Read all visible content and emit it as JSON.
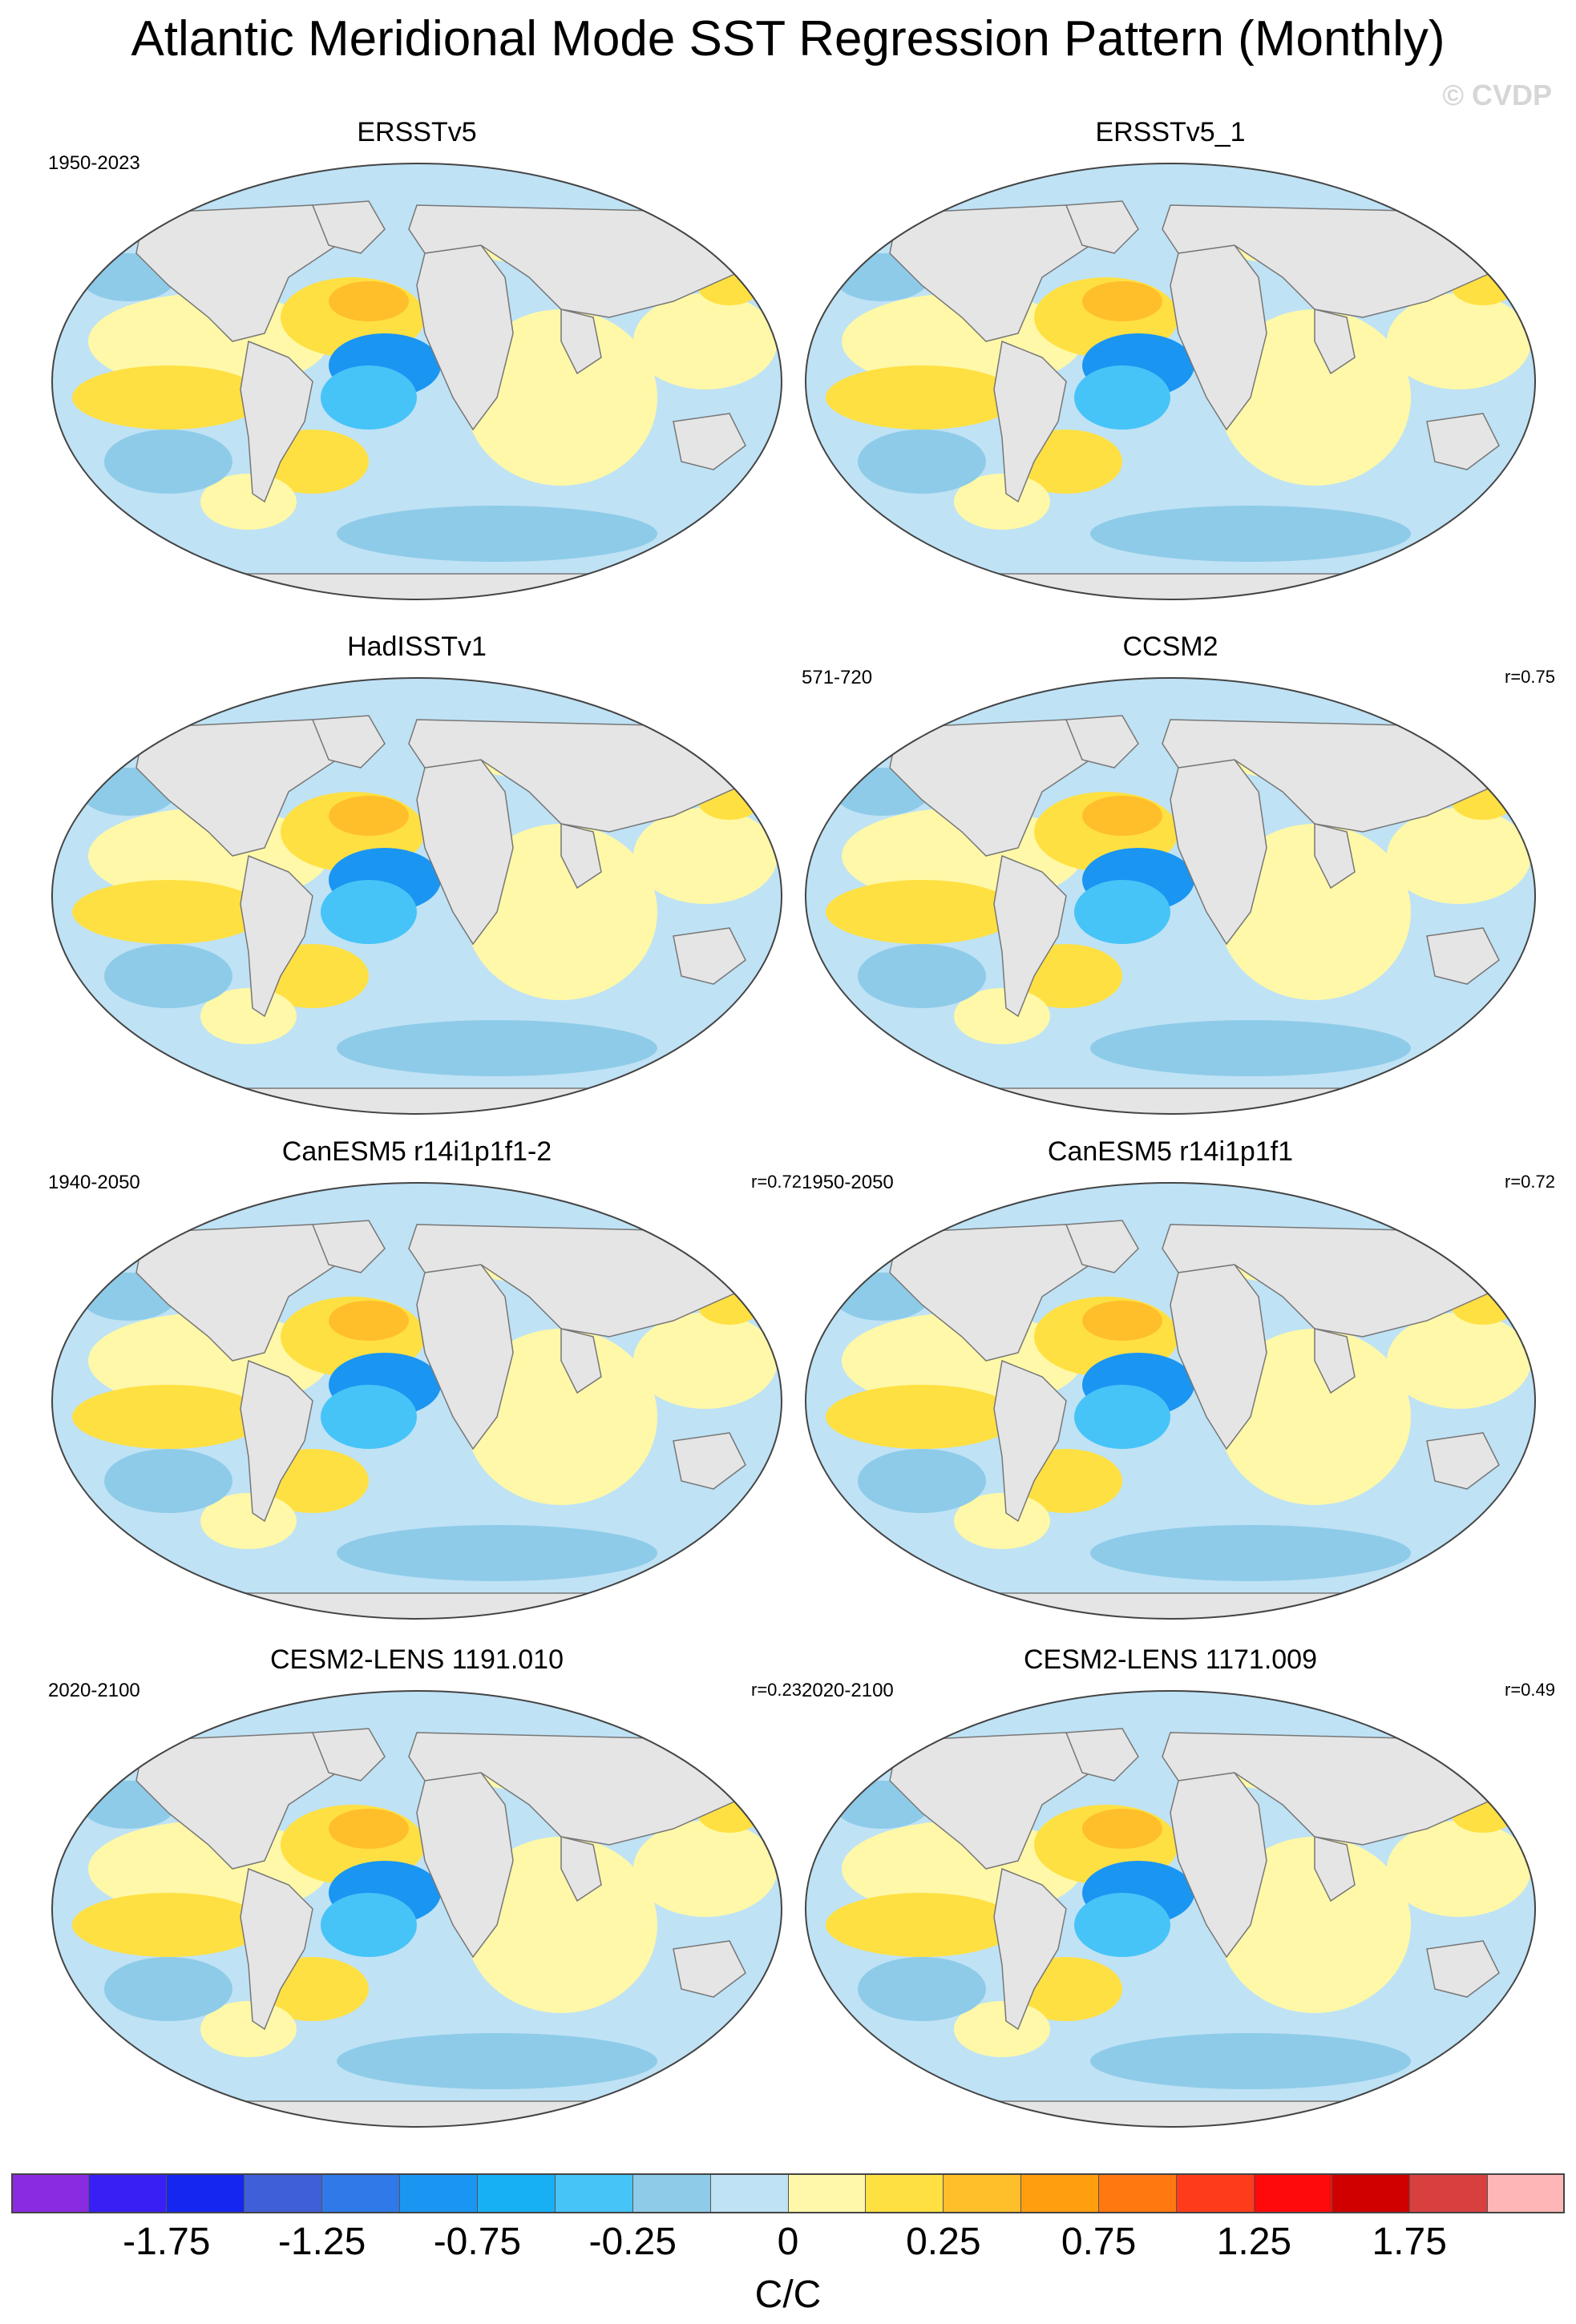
{
  "title": "Atlantic Meridional Mode SST Regression Pattern (Monthly)",
  "watermark": "© CVDP",
  "panels": [
    {
      "title": "ERSSTv5",
      "years": "1950-2023",
      "r": ""
    },
    {
      "title": "ERSSTv5_1",
      "years": "",
      "r": ""
    },
    {
      "title": "HadISSTv1",
      "years": "",
      "r": ""
    },
    {
      "title": "CCSM2",
      "years": "571-720",
      "r": "r=0.75"
    },
    {
      "title": "CanESM5 r14i1p1f1-2",
      "years": "1940-2050",
      "r": "r=0.72"
    },
    {
      "title": "CanESM5 r14i1p1f1",
      "years": "1950-2050",
      "r": "r=0.72"
    },
    {
      "title": "CESM2-LENS 1191.010",
      "years": "2020-2100",
      "r": "r=0.23"
    },
    {
      "title": "CESM2-LENS 1171.009",
      "years": "2020-2100",
      "r": "r=0.49"
    }
  ],
  "colorbar": {
    "colors": [
      "#8a2be2",
      "#3a1ff5",
      "#1426f0",
      "#3f5fd9",
      "#2f7ae8",
      "#1a95f2",
      "#18b0f5",
      "#46c4f7",
      "#8ecbe8",
      "#bfe2f5",
      "#fff8a8",
      "#ffe042",
      "#ffbf2a",
      "#ff9f10",
      "#ff7810",
      "#ff3c1a",
      "#ff0a0a",
      "#d00000",
      "#d84040",
      "#ffb6b6"
    ],
    "labels": [
      "-1.75",
      "-1.25",
      "-0.75",
      "-0.25",
      "0",
      "0.25",
      "0.75",
      "1.25",
      "1.75"
    ],
    "units": "C/C"
  }
}
